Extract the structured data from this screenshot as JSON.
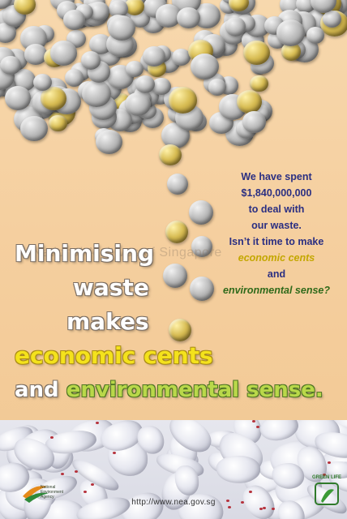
{
  "right_text": {
    "line1": "We have spent",
    "line2": "$1,840,000,000",
    "line3": "to deal with",
    "line4": "our waste.",
    "line5": "Isn’t it time to make",
    "line6": "economic cents",
    "line7": "and",
    "line8": "environmental sense?"
  },
  "headline": {
    "line1": "Minimising",
    "line2": "waste",
    "line3": "makes",
    "line4": "economic cents",
    "line5_and": "and",
    "line5_env": "environmental sense."
  },
  "watermark": "National Archives of Singapore",
  "footer": {
    "url": "http://www.nea.gov.sg",
    "nea_text": "National Environment Agency",
    "green_logo_text": "GREEN LIFE"
  },
  "colors": {
    "background": "#f5cf9f",
    "right_text_blue": "#2b2f82",
    "economic_yellow": "#f4e21c",
    "environment_green": "#b9d84a"
  }
}
